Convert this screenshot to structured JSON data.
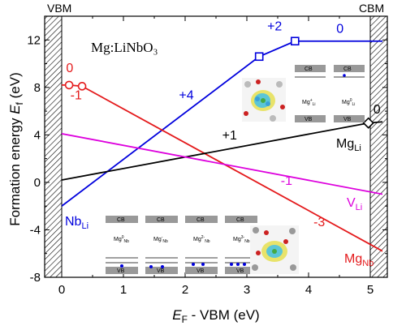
{
  "chart_data": {
    "type": "line",
    "title": "Mg:LiNbO₃",
    "xlabel": "E_F - VBM (eV)",
    "xlabel_main": "E",
    "xlabel_sub": "F",
    "xlabel_rest": " - VBM (eV)",
    "ylabel": "Formation energy E_f (eV)",
    "ylabel_main": "Formation energy ",
    "ylabel_italic": "E",
    "ylabel_sub": "f",
    "ylabel_rest": " (eV)",
    "xlim": [
      0,
      5.2
    ],
    "ylim": [
      -8,
      14
    ],
    "xticks": [
      0,
      1,
      2,
      3,
      4,
      5
    ],
    "yticks": [
      -8,
      -4,
      0,
      4,
      8,
      12
    ],
    "band_edges": {
      "vbm_label": "VBM",
      "cbm_label": "CBM",
      "vbm": 0,
      "cbm": 5.0
    },
    "series": [
      {
        "label_main": "Nb",
        "label_sub": "Li",
        "color": "#0000dd",
        "x": [
          0,
          3.2,
          3.78,
          5.2
        ],
        "y": [
          -2.0,
          10.6,
          11.9,
          11.9
        ],
        "markers": [
          {
            "x": 3.2,
            "y": 10.6,
            "shape": "square"
          },
          {
            "x": 3.78,
            "y": 11.9,
            "shape": "square"
          }
        ],
        "charge_labels": [
          {
            "text": "+4",
            "x": 1.9,
            "y": 7.0
          },
          {
            "text": "+2",
            "x": 3.33,
            "y": 12.8
          },
          {
            "text": "0",
            "x": 4.45,
            "y": 12.6
          }
        ]
      },
      {
        "label_main": "Mg",
        "label_sub": "Nb",
        "color": "#e41a1c",
        "x": [
          0,
          0.12,
          0.33,
          5.2
        ],
        "y": [
          8.2,
          8.2,
          8.1,
          -5.8
        ],
        "markers": [
          {
            "x": 0.12,
            "y": 8.2,
            "shape": "circle"
          },
          {
            "x": 0.33,
            "y": 8.1,
            "shape": "circle"
          }
        ],
        "charge_labels": [
          {
            "text": "0",
            "x": 0.07,
            "y": 9.3
          },
          {
            "text": "-1",
            "x": 0.14,
            "y": 7.0
          },
          {
            "text": "-3",
            "x": 4.08,
            "y": -3.7
          }
        ]
      },
      {
        "label_main": "Mg",
        "label_sub": "Li",
        "color": "#000000",
        "x": [
          0,
          4.97,
          5.2
        ],
        "y": [
          0.2,
          5.0,
          5.1
        ],
        "markers": [
          {
            "x": 4.97,
            "y": 5.0,
            "shape": "diamond"
          }
        ],
        "charge_labels": [
          {
            "text": "+1",
            "x": 2.6,
            "y": 3.6
          },
          {
            "text": "0",
            "x": 5.05,
            "y": 5.8
          }
        ]
      },
      {
        "label_main": "V",
        "label_sub": "Li",
        "color": "#dd00dd",
        "x": [
          0,
          5.2
        ],
        "y": [
          4.1,
          -1.0
        ],
        "markers": [],
        "charge_labels": [
          {
            "text": "-1",
            "x": 3.55,
            "y": -0.2
          }
        ]
      }
    ]
  },
  "insets": {
    "band_cb": "CB",
    "band_vb": "VB",
    "top_labels": [
      "Mg",
      "Mg"
    ],
    "top_subs": [
      "Li",
      "Li"
    ],
    "top_sups": [
      "+",
      "0"
    ],
    "bottom_labels": [
      "Mg",
      "Mg",
      "Mg",
      "Mg"
    ],
    "bottom_subs": [
      "Nb",
      "Nb",
      "Nb",
      "Nb"
    ],
    "bottom_sups": [
      "0",
      "-",
      "2-",
      "3-"
    ]
  }
}
